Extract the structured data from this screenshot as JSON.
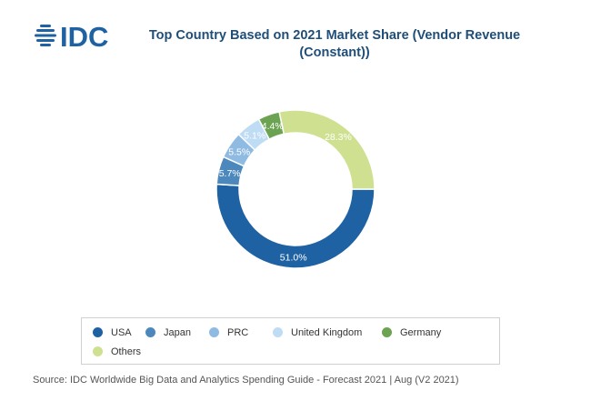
{
  "header": {
    "logo_text": "IDC",
    "title_line1": "Top Country Based on 2021 Market Share (Vendor Revenue",
    "title_line2": "(Constant))"
  },
  "chart_data": {
    "type": "pie",
    "style": "donut",
    "title": "Top Country Based on 2021 Market Share (Vendor Revenue (Constant))",
    "unit": "%",
    "slices": [
      {
        "label": "USA",
        "value": 51.0,
        "display": "51.0%",
        "color": "#1f62a3"
      },
      {
        "label": "Japan",
        "value": 5.7,
        "display": "5.7%",
        "color": "#4d88bd"
      },
      {
        "label": "PRC",
        "value": 5.5,
        "display": "5.5%",
        "color": "#8fbbe3"
      },
      {
        "label": "United Kingdom",
        "value": 5.1,
        "display": "5.1%",
        "color": "#bfdcf5"
      },
      {
        "label": "Germany",
        "value": 4.4,
        "display": "4.4%",
        "color": "#6ba353"
      },
      {
        "label": "Others",
        "value": 28.3,
        "display": "28.3%",
        "color": "#cfe191"
      }
    ],
    "legend_position": "bottom"
  },
  "footer": {
    "source": "Source: IDC Worldwide Big Data and Analytics Spending Guide - Forecast 2021 | Aug (V2 2021)"
  }
}
